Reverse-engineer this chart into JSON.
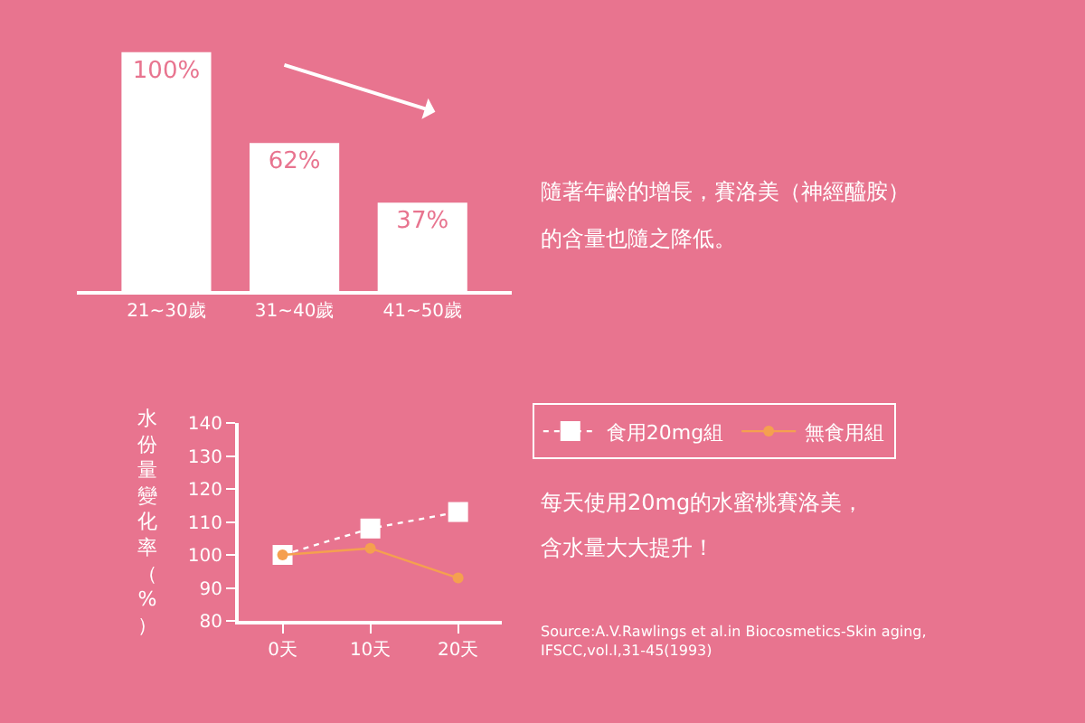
{
  "chart_data": [
    {
      "type": "bar",
      "categories": [
        "21~30歲",
        "31~40歲",
        "41~50歲"
      ],
      "values": [
        100,
        62,
        37
      ],
      "value_labels": [
        "100%",
        "62%",
        "37%"
      ],
      "color": "#ffffff",
      "annotations": [
        "隨著年齡的增長，賽洛美（神經醯胺）",
        "的含量也隨之降低。"
      ]
    },
    {
      "type": "line",
      "categories": [
        "0天",
        "10天",
        "20天"
      ],
      "ylabel": "水份量變化率（%）",
      "ylim": [
        80,
        140
      ],
      "yticks": [
        80,
        90,
        100,
        110,
        120,
        130,
        140
      ],
      "legend": "top right",
      "series": [
        {
          "name": "食用20mg組",
          "color": "#ffffff",
          "values": [
            100,
            108,
            113
          ],
          "marker": "square",
          "line_style": "dotted"
        },
        {
          "name": "無食用組",
          "color": "#f5a04f",
          "values": [
            100,
            102,
            93
          ],
          "marker": "circle",
          "line_style": "solid"
        }
      ],
      "annotations": [
        "每天使用20mg的水蜜桃賽洛美，",
        "含水量大大提升！",
        "Source:A.V.Rawlings et al.in Biocosmetics-Skin aging,\nIFSCC,vol.I,31-45(1993)"
      ]
    }
  ]
}
